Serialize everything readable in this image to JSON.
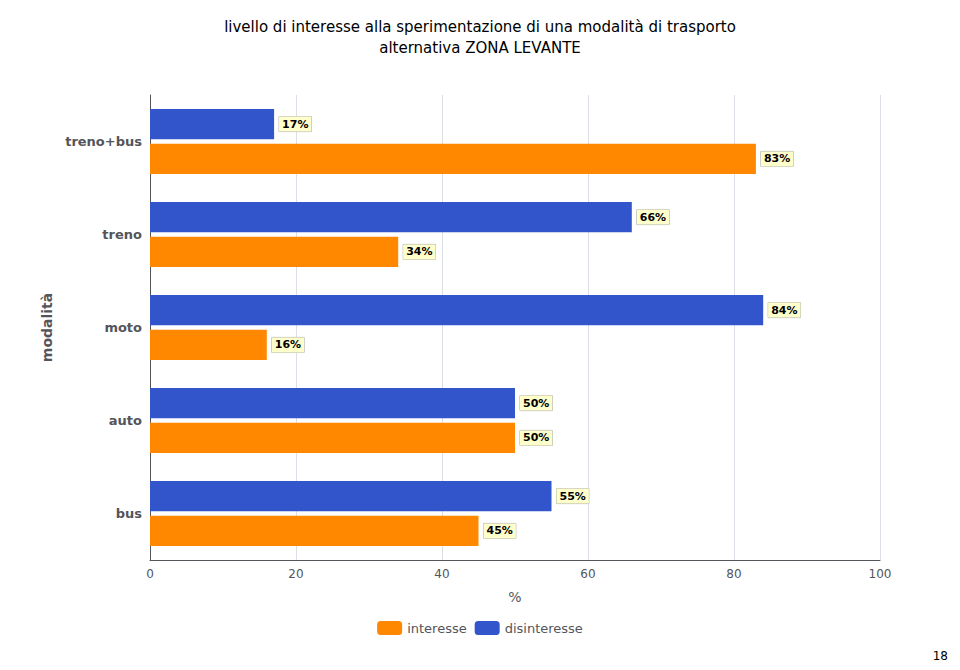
{
  "chart_data": {
    "type": "bar",
    "orientation": "horizontal",
    "title": "livello di interesse alla sperimentazione di una modalità di trasporto",
    "subtitle": "alternativa ZONA LEVANTE",
    "x_label": "%",
    "y_label": "modalità",
    "categories": [
      "treno+bus",
      "treno",
      "moto",
      "auto",
      "bus"
    ],
    "series": [
      {
        "name": "interesse",
        "color": "#FF8800",
        "values": [
          83,
          34,
          16,
          50,
          45
        ],
        "value_labels": [
          "83%",
          "34%",
          "16%",
          "50%",
          "45%"
        ]
      },
      {
        "name": "disinteresse",
        "color": "#3355CC",
        "values": [
          17,
          66,
          84,
          50,
          55
        ],
        "value_labels": [
          "17%",
          "66%",
          "84%",
          "50%",
          "55%"
        ]
      }
    ],
    "xlim": [
      0,
      100
    ],
    "xticks": [
      0,
      20,
      40,
      60,
      80,
      100
    ],
    "grid": true,
    "legend": "bottom",
    "data_labels": true,
    "annotations": [
      {
        "text": "18"
      }
    ]
  }
}
